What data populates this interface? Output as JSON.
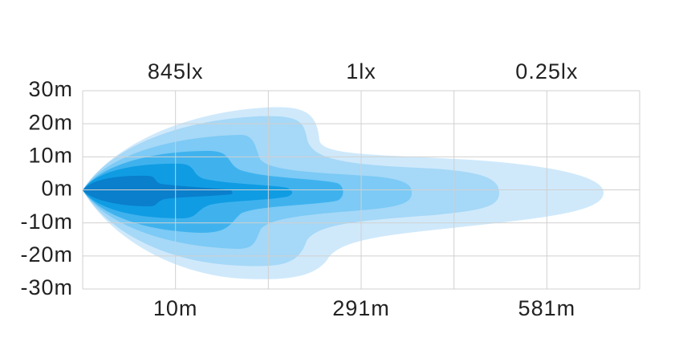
{
  "chart_data": {
    "type": "beam",
    "categories": [
      "10m",
      "291m",
      "581m"
    ],
    "lux_labels": [
      "845lx",
      "1lx",
      "0.25lx"
    ],
    "ylim": [
      -30,
      30
    ],
    "yticks": [
      {
        "value": 30,
        "label": "30m"
      },
      {
        "value": 20,
        "label": "20m"
      },
      {
        "value": 10,
        "label": "10m"
      },
      {
        "value": 0,
        "label": "0m"
      },
      {
        "value": -10,
        "label": "-10m"
      },
      {
        "value": -20,
        "label": "-20m"
      },
      {
        "value": -30,
        "label": "-30m"
      }
    ],
    "grid": true
  }
}
